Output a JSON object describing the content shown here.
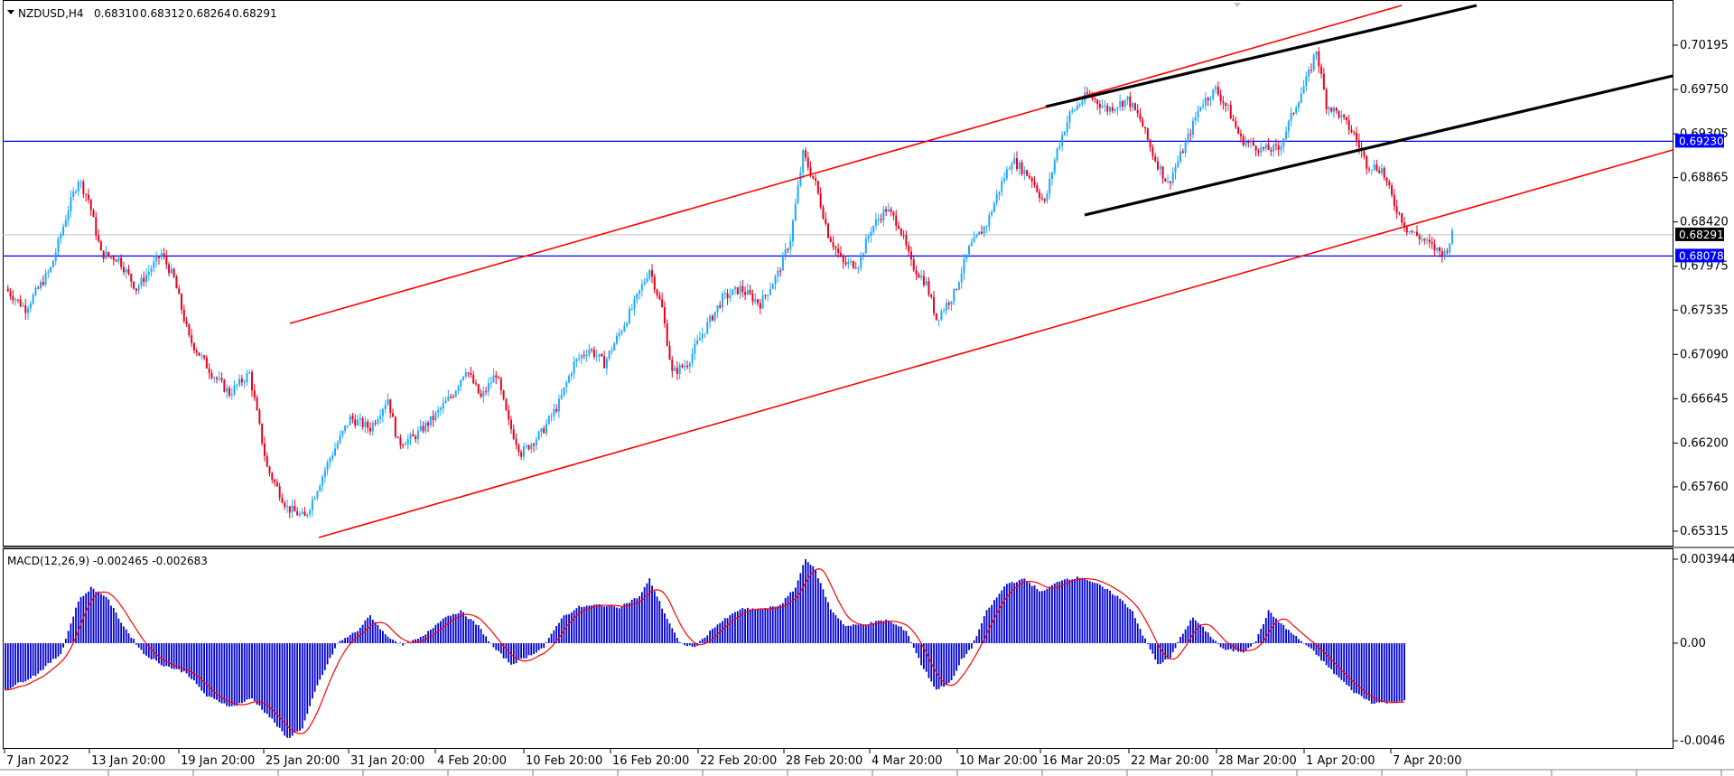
{
  "window": {
    "symbol_header": "NZDUSD,H4",
    "ohlc": [
      "0.68310",
      "0.68312",
      "0.68264",
      "0.68291"
    ]
  },
  "colors": {
    "bull": "#1ea7ff",
    "bear": "#e8001c",
    "hline": "#0000ff",
    "channel_red": "#ff0000",
    "channel_black": "#000000",
    "macd_hist": "#0000d0",
    "macd_signal": "#ff0000",
    "current_price_line": "#c0c0c0"
  },
  "chart_data": [
    {
      "type": "candlestick",
      "title": "NZDUSD,H4",
      "ylim": [
        0.6509,
        0.7041
      ],
      "y_ticks": [
        "0.70195",
        "0.69750",
        "0.69305",
        "0.68865",
        "0.68420",
        "0.67975",
        "0.67535",
        "0.67090",
        "0.66645",
        "0.66200",
        "0.65760",
        "0.65315"
      ],
      "x_ticks": [
        "7 Jan 2022",
        "13 Jan 20:00",
        "19 Jan 20:00",
        "25 Jan 20:00",
        "31 Jan 20:00",
        "4 Feb 20:00",
        "10 Feb 20:00",
        "16 Feb 20:00",
        "22 Feb 20:00",
        "28 Feb 20:00",
        "4 Mar 20:00",
        "10 Mar 20:00",
        "16 Mar 20:05",
        "22 Mar 20:00",
        "28 Mar 20:00",
        "1 Apr 20:00",
        "7 Apr 20:00"
      ],
      "price_path": [
        [
          0,
          0.6775
        ],
        [
          8,
          0.6755
        ],
        [
          18,
          0.6795
        ],
        [
          25,
          0.6855
        ],
        [
          29,
          0.6885
        ],
        [
          33,
          0.6865
        ],
        [
          38,
          0.681
        ],
        [
          45,
          0.6805
        ],
        [
          52,
          0.6775
        ],
        [
          62,
          0.681
        ],
        [
          67,
          0.6785
        ],
        [
          73,
          0.6725
        ],
        [
          82,
          0.669
        ],
        [
          89,
          0.667
        ],
        [
          97,
          0.669
        ],
        [
          104,
          0.6595
        ],
        [
          112,
          0.6555
        ],
        [
          119,
          0.6545
        ],
        [
          129,
          0.6605
        ],
        [
          137,
          0.6645
        ],
        [
          145,
          0.6635
        ],
        [
          152,
          0.6665
        ],
        [
          156,
          0.662
        ],
        [
          162,
          0.6625
        ],
        [
          170,
          0.6645
        ],
        [
          178,
          0.667
        ],
        [
          183,
          0.6695
        ],
        [
          189,
          0.6665
        ],
        [
          195,
          0.669
        ],
        [
          200,
          0.664
        ],
        [
          205,
          0.661
        ],
        [
          213,
          0.663
        ],
        [
          220,
          0.666
        ],
        [
          226,
          0.67
        ],
        [
          232,
          0.6715
        ],
        [
          238,
          0.67
        ],
        [
          244,
          0.673
        ],
        [
          250,
          0.676
        ],
        [
          256,
          0.6795
        ],
        [
          261,
          0.6755
        ],
        [
          265,
          0.669
        ],
        [
          271,
          0.67
        ],
        [
          277,
          0.673
        ],
        [
          285,
          0.6765
        ],
        [
          292,
          0.6775
        ],
        [
          300,
          0.676
        ],
        [
          307,
          0.679
        ],
        [
          312,
          0.6825
        ],
        [
          317,
          0.691
        ],
        [
          322,
          0.688
        ],
        [
          327,
          0.683
        ],
        [
          333,
          0.68
        ],
        [
          339,
          0.68
        ],
        [
          344,
          0.6835
        ],
        [
          350,
          0.6855
        ],
        [
          355,
          0.684
        ],
        [
          360,
          0.68
        ],
        [
          366,
          0.678
        ],
        [
          370,
          0.6745
        ],
        [
          377,
          0.677
        ],
        [
          383,
          0.6815
        ],
        [
          390,
          0.684
        ],
        [
          395,
          0.6875
        ],
        [
          400,
          0.6905
        ],
        [
          408,
          0.6885
        ],
        [
          413,
          0.686
        ],
        [
          418,
          0.6915
        ],
        [
          423,
          0.695
        ],
        [
          430,
          0.697
        ],
        [
          438,
          0.6955
        ],
        [
          446,
          0.6965
        ],
        [
          451,
          0.6945
        ],
        [
          456,
          0.691
        ],
        [
          462,
          0.688
        ],
        [
          469,
          0.692
        ],
        [
          475,
          0.696
        ],
        [
          481,
          0.6975
        ],
        [
          486,
          0.6955
        ],
        [
          491,
          0.6925
        ],
        [
          499,
          0.6915
        ],
        [
          506,
          0.6915
        ],
        [
          513,
          0.696
        ],
        [
          518,
          0.699
        ],
        [
          521,
          0.7015
        ],
        [
          525,
          0.696
        ],
        [
          530,
          0.695
        ],
        [
          536,
          0.693
        ],
        [
          541,
          0.69
        ],
        [
          547,
          0.6895
        ],
        [
          552,
          0.686
        ],
        [
          557,
          0.6835
        ],
        [
          563,
          0.6825
        ],
        [
          568,
          0.6815
        ],
        [
          572,
          0.681
        ],
        [
          575,
          0.6829
        ]
      ],
      "candles_per_pixel_note": "H4 candles",
      "horizontal_levels": [
        {
          "value": "0.69230",
          "badge": "0.69230"
        },
        {
          "value": "0.68078",
          "badge": "0.68078"
        }
      ],
      "current_price": "0.68291"
    },
    {
      "type": "bar",
      "title": "MACD(12,26,9) -0.002465 -0.002683",
      "ylim": [
        -0.0046,
        0.00394
      ],
      "y_ticks": [
        "0.003944",
        "0.00",
        "-0.0046"
      ],
      "macd_path": [
        [
          0,
          -0.0022
        ],
        [
          12,
          -0.0015
        ],
        [
          22,
          -0.0005
        ],
        [
          29,
          0.002
        ],
        [
          34,
          0.0026
        ],
        [
          40,
          0.0022
        ],
        [
          47,
          0.0008
        ],
        [
          55,
          -0.0005
        ],
        [
          62,
          -0.001
        ],
        [
          72,
          -0.0014
        ],
        [
          80,
          -0.0025
        ],
        [
          90,
          -0.003
        ],
        [
          98,
          -0.0026
        ],
        [
          106,
          -0.0036
        ],
        [
          112,
          -0.0045
        ],
        [
          118,
          -0.004
        ],
        [
          124,
          -0.002
        ],
        [
          132,
          0.0
        ],
        [
          140,
          0.0006
        ],
        [
          145,
          0.0013
        ],
        [
          151,
          0.0004
        ],
        [
          158,
          -0.0001
        ],
        [
          166,
          0.0003
        ],
        [
          174,
          0.0012
        ],
        [
          181,
          0.0015
        ],
        [
          188,
          0.0008
        ],
        [
          194,
          -0.0002
        ],
        [
          201,
          -0.001
        ],
        [
          208,
          -0.0006
        ],
        [
          214,
          -0.0002
        ],
        [
          221,
          0.0012
        ],
        [
          228,
          0.0017
        ],
        [
          236,
          0.0018
        ],
        [
          244,
          0.0017
        ],
        [
          252,
          0.0022
        ],
        [
          256,
          0.003
        ],
        [
          262,
          0.0014
        ],
        [
          268,
          0.0
        ],
        [
          274,
          -0.0002
        ],
        [
          282,
          0.0008
        ],
        [
          292,
          0.0016
        ],
        [
          302,
          0.0016
        ],
        [
          308,
          0.0018
        ],
        [
          314,
          0.0026
        ],
        [
          318,
          0.004
        ],
        [
          322,
          0.0034
        ],
        [
          328,
          0.0016
        ],
        [
          334,
          0.0008
        ],
        [
          342,
          0.0009
        ],
        [
          350,
          0.0011
        ],
        [
          358,
          0.0006
        ],
        [
          364,
          -0.001
        ],
        [
          370,
          -0.0022
        ],
        [
          376,
          -0.0018
        ],
        [
          380,
          -0.0008
        ],
        [
          384,
          -0.0002
        ],
        [
          390,
          0.0015
        ],
        [
          398,
          0.0028
        ],
        [
          405,
          0.003
        ],
        [
          412,
          0.0024
        ],
        [
          420,
          0.003
        ],
        [
          428,
          0.0031
        ],
        [
          435,
          0.0027
        ],
        [
          442,
          0.0022
        ],
        [
          448,
          0.0015
        ],
        [
          452,
          0.0004
        ],
        [
          458,
          -0.001
        ],
        [
          463,
          -0.0007
        ],
        [
          468,
          0.0005
        ],
        [
          472,
          0.0012
        ],
        [
          477,
          0.0006
        ],
        [
          484,
          -0.0003
        ],
        [
          492,
          -0.0004
        ],
        [
          497,
          0.0001
        ],
        [
          502,
          0.0015
        ],
        [
          508,
          0.0008
        ],
        [
          514,
          0.0002
        ],
        [
          520,
          -0.0004
        ],
        [
          528,
          -0.0014
        ],
        [
          536,
          -0.0023
        ],
        [
          543,
          -0.0028
        ],
        [
          550,
          -0.0028
        ],
        [
          556,
          -0.0027
        ]
      ],
      "macd_value": "-0.002465",
      "signal_value": "-0.002683"
    }
  ]
}
